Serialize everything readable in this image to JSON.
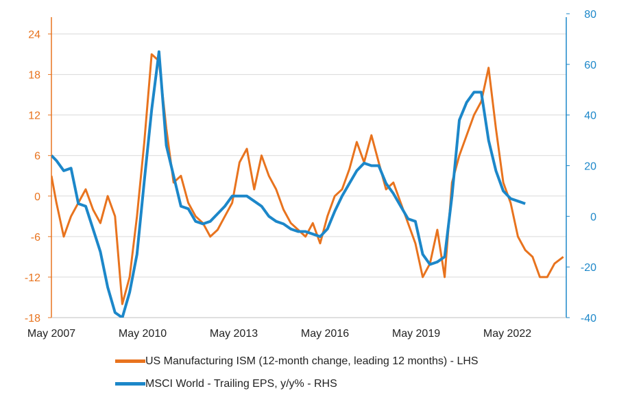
{
  "chart_data": {
    "type": "line",
    "x_tick_labels": [
      "May 2007",
      "May 2010",
      "May 2013",
      "May 2016",
      "May 2019",
      "May 2022"
    ],
    "x_range": [
      2007.33,
      2024.9
    ],
    "left_axis": {
      "ticks": [
        24,
        18,
        12,
        6,
        0,
        -6,
        -12,
        -18
      ],
      "ylim": [
        -18,
        27
      ]
    },
    "right_axis": {
      "ticks": [
        80,
        60,
        40,
        20,
        0,
        -20,
        -40
      ],
      "ylim": [
        -40,
        80
      ]
    },
    "grid": "horizontal",
    "legend_placement": "bottom",
    "colors": {
      "left_axis": "#E8731E",
      "right_axis": "#1C87C9",
      "grid": "#d9d9d9"
    },
    "series": [
      {
        "name": "US Manufacturing ISM (12-month change, leading 12 months) - LHS",
        "axis": "left",
        "color": "#E8731E",
        "x": [
          2007.33,
          2007.5,
          2007.75,
          2008.0,
          2008.25,
          2008.5,
          2008.75,
          2009.0,
          2009.25,
          2009.5,
          2009.75,
          2010.0,
          2010.25,
          2010.5,
          2010.75,
          2011.0,
          2011.25,
          2011.5,
          2011.75,
          2012.0,
          2012.25,
          2012.5,
          2012.75,
          2013.0,
          2013.25,
          2013.5,
          2013.75,
          2014.0,
          2014.25,
          2014.5,
          2014.75,
          2015.0,
          2015.25,
          2015.5,
          2015.75,
          2016.0,
          2016.25,
          2016.5,
          2016.75,
          2017.0,
          2017.25,
          2017.5,
          2017.75,
          2018.0,
          2018.25,
          2018.5,
          2018.75,
          2019.0,
          2019.25,
          2019.5,
          2019.75,
          2020.0,
          2020.25,
          2020.5,
          2020.75,
          2021.0,
          2021.25,
          2021.5,
          2021.75,
          2022.0,
          2022.25,
          2022.5,
          2022.75,
          2023.0,
          2023.25,
          2023.5,
          2023.75,
          2024.0,
          2024.25,
          2024.5,
          2024.8
        ],
        "y": [
          3,
          -1,
          -6,
          -3,
          -1,
          1,
          -2,
          -4,
          0,
          -3,
          -16,
          -12,
          -3,
          8,
          21,
          20,
          10,
          2,
          3,
          -1,
          -3,
          -4,
          -6,
          -5,
          -3,
          -1,
          5,
          7,
          1,
          6,
          3,
          1,
          -2,
          -4,
          -5,
          -6,
          -4,
          -7,
          -3,
          0,
          1,
          4,
          8,
          5,
          9,
          5,
          1,
          2,
          -1,
          -4,
          -7,
          -12,
          -10,
          -5,
          -12,
          2,
          6,
          9,
          12,
          14,
          19,
          10,
          2,
          -1,
          -6,
          -8,
          -9,
          -12,
          -12,
          -10,
          -9
        ]
      },
      {
        "name": "MSCI World - Trailing EPS, y/y% - RHS",
        "axis": "right",
        "color": "#1C87C9",
        "x": [
          2007.33,
          2007.5,
          2007.75,
          2008.0,
          2008.25,
          2008.5,
          2008.75,
          2009.0,
          2009.25,
          2009.5,
          2009.75,
          2010.0,
          2010.25,
          2010.5,
          2010.75,
          2011.0,
          2011.25,
          2011.5,
          2011.75,
          2012.0,
          2012.25,
          2012.5,
          2012.75,
          2013.0,
          2013.25,
          2013.5,
          2013.75,
          2014.0,
          2014.25,
          2014.5,
          2014.75,
          2015.0,
          2015.25,
          2015.5,
          2015.75,
          2016.0,
          2016.25,
          2016.5,
          2016.75,
          2017.0,
          2017.25,
          2017.5,
          2017.75,
          2018.0,
          2018.25,
          2018.5,
          2018.75,
          2019.0,
          2019.25,
          2019.5,
          2019.75,
          2020.0,
          2020.25,
          2020.5,
          2020.75,
          2021.0,
          2021.25,
          2021.5,
          2021.75,
          2022.0,
          2022.25,
          2022.5,
          2022.75,
          2023.0,
          2023.25,
          2023.5
        ],
        "y": [
          24,
          22,
          18,
          19,
          5,
          4,
          -5,
          -14,
          -28,
          -38,
          -40,
          -30,
          -15,
          14,
          42,
          65,
          28,
          16,
          4,
          3,
          -2,
          -3,
          -2,
          1,
          4,
          8,
          8,
          8,
          6,
          4,
          0,
          -2,
          -3,
          -5,
          -6,
          -6,
          -7,
          -8,
          -5,
          2,
          8,
          13,
          18,
          21,
          20,
          20,
          13,
          9,
          4,
          -1,
          -2,
          -15,
          -19,
          -18,
          -16,
          8,
          38,
          45,
          49,
          49,
          30,
          18,
          10,
          7,
          6,
          5
        ]
      }
    ]
  }
}
